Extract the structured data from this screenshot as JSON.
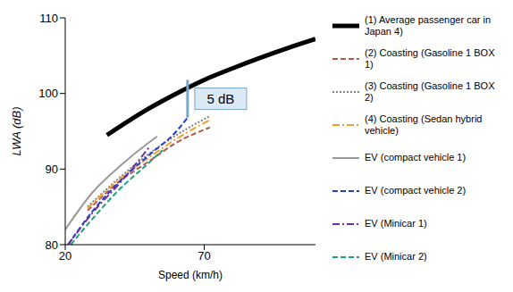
{
  "chart_data": {
    "type": "line",
    "x_label": "Speed (km/h)",
    "y_label": "LWA (dB)",
    "xlim": [
      20,
      110
    ],
    "xticks": [
      20,
      70
    ],
    "ylim": [
      80,
      110
    ],
    "yticks": [
      80,
      90,
      100,
      110
    ],
    "grid": false,
    "legend": "right",
    "annotations": [
      {
        "text": "5 dB",
        "x": 64,
        "y_from": 101.8,
        "y_to": 96.8
      }
    ],
    "series": [
      {
        "name": "(1) Average passenger car in Japan 4)",
        "color": "#000000",
        "line_style": "solid",
        "x": [
          35,
          50,
          60,
          70,
          80,
          90,
          100,
          110
        ],
        "values": [
          94.5,
          98,
          100,
          101.8,
          103.3,
          104.7,
          106,
          107.2
        ]
      },
      {
        "name": "(2) Coasting (Gasoline 1 BOX 1)",
        "color": "#b05a4a",
        "line_style": "dashed",
        "x": [
          28,
          40,
          50,
          60,
          72
        ],
        "values": [
          84.5,
          88.5,
          91,
          93.5,
          95.5
        ]
      },
      {
        "name": "(3) Coasting (Gasoline 1 BOX 2)",
        "color": "#808080",
        "line_style": "dotted",
        "x": [
          28,
          40,
          50,
          60,
          72
        ],
        "values": [
          85,
          89,
          92,
          94.5,
          97
        ]
      },
      {
        "name": "(4) Coasting (Sedan hybrid vehicle)",
        "color": "#f0a030",
        "line_style": "dashdot",
        "x": [
          28,
          40,
          50,
          60,
          72
        ],
        "values": [
          84.8,
          88.8,
          91.5,
          94,
          96.5
        ]
      },
      {
        "name": "EV (compact vehicle 1)",
        "color": "#999999",
        "line_style": "solid",
        "x": [
          20,
          30,
          40,
          50,
          53
        ],
        "values": [
          82,
          87,
          90.5,
          93.5,
          94.3
        ]
      },
      {
        "name": "EV (compact vehicle 2)",
        "color": "#1f3fd0",
        "line_style": "dashed",
        "x": [
          21,
          30,
          40,
          50,
          60,
          64
        ],
        "values": [
          80,
          84.5,
          88.5,
          91.8,
          95,
          96.8
        ]
      },
      {
        "name": "EV (Minicar 1)",
        "color": "#7030a0",
        "line_style": "dashdot",
        "x": [
          21,
          30,
          40,
          50
        ],
        "values": [
          80,
          84.3,
          88.3,
          92.8
        ]
      },
      {
        "name": "EV (Minicar 2)",
        "color": "#1f9f7f",
        "line_style": "dashed",
        "x": [
          22,
          30,
          40,
          50,
          55
        ],
        "values": [
          80,
          83.5,
          87.5,
          90.8,
          92.5
        ]
      }
    ]
  }
}
